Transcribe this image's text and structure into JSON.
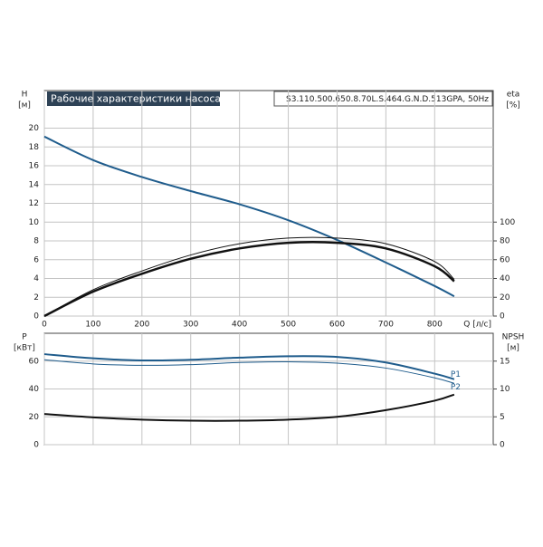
{
  "chart_data": [
    {
      "type": "line",
      "title": "Рабочие характеристики насоса",
      "subtitle": "S3.110.500.650.8.70L.S.464.G.N.D.513GPA, 50Hz",
      "x_label": "Q [л/с]",
      "y_label": "H",
      "y_unit": "[м]",
      "y2_label": "eta",
      "y2_unit": "[%]",
      "x": [
        0,
        100,
        200,
        300,
        400,
        500,
        600,
        700,
        800,
        840
      ],
      "xlim": [
        0,
        920
      ],
      "xticks": [
        0,
        100,
        200,
        300,
        400,
        500,
        600,
        700,
        800
      ],
      "ylim": [
        0,
        24
      ],
      "yticks": [
        0,
        2,
        4,
        6,
        8,
        10,
        12,
        14,
        16,
        18,
        20
      ],
      "y2lim": [
        0,
        240
      ],
      "y2ticks": [
        0,
        20,
        40,
        60,
        80,
        100
      ],
      "grid": true,
      "series": [
        {
          "color": "#1f5c8c",
          "width": 2,
          "values": [
            19.1,
            16.6,
            14.8,
            13.3,
            11.9,
            10.2,
            8.1,
            5.7,
            3.2,
            2.1
          ]
        },
        {
          "color": "#111111",
          "width": 1,
          "axis": "y2",
          "values": [
            0,
            28,
            48,
            65,
            77,
            83,
            83,
            77,
            58,
            39
          ]
        },
        {
          "color": "#111111",
          "width": 2.5,
          "axis": "y2",
          "values": [
            0,
            26,
            45,
            61,
            72,
            78,
            78,
            72,
            53,
            37
          ]
        }
      ]
    },
    {
      "type": "line",
      "y_label": "P",
      "y_unit": "[кВт]",
      "y2_label": "NPSH",
      "y2_unit": "[м]",
      "x": [
        0,
        100,
        200,
        300,
        400,
        500,
        600,
        700,
        800,
        840
      ],
      "xlim": [
        0,
        920
      ],
      "xticks": [
        0,
        100,
        200,
        300,
        400,
        500,
        600,
        700,
        800
      ],
      "ylim": [
        0,
        80
      ],
      "yticks": [
        0,
        20,
        40,
        60
      ],
      "y2lim": [
        0,
        20
      ],
      "y2ticks": [
        0,
        5,
        10,
        15
      ],
      "grid": true,
      "series": [
        {
          "name": "P1",
          "color": "#1f5c8c",
          "width": 2,
          "values": [
            65,
            62,
            60.5,
            61,
            62.5,
            63.5,
            63,
            59,
            51,
            47
          ]
        },
        {
          "name": "P2",
          "color": "#1f5c8c",
          "width": 1,
          "values": [
            61,
            58,
            57,
            57.5,
            59,
            59.5,
            58.5,
            55,
            48,
            44
          ]
        },
        {
          "color": "#111111",
          "width": 2,
          "axis": "y2",
          "values": [
            5.5,
            4.9,
            4.5,
            4.3,
            4.3,
            4.5,
            5.0,
            6.2,
            7.9,
            9.0
          ]
        }
      ]
    }
  ]
}
